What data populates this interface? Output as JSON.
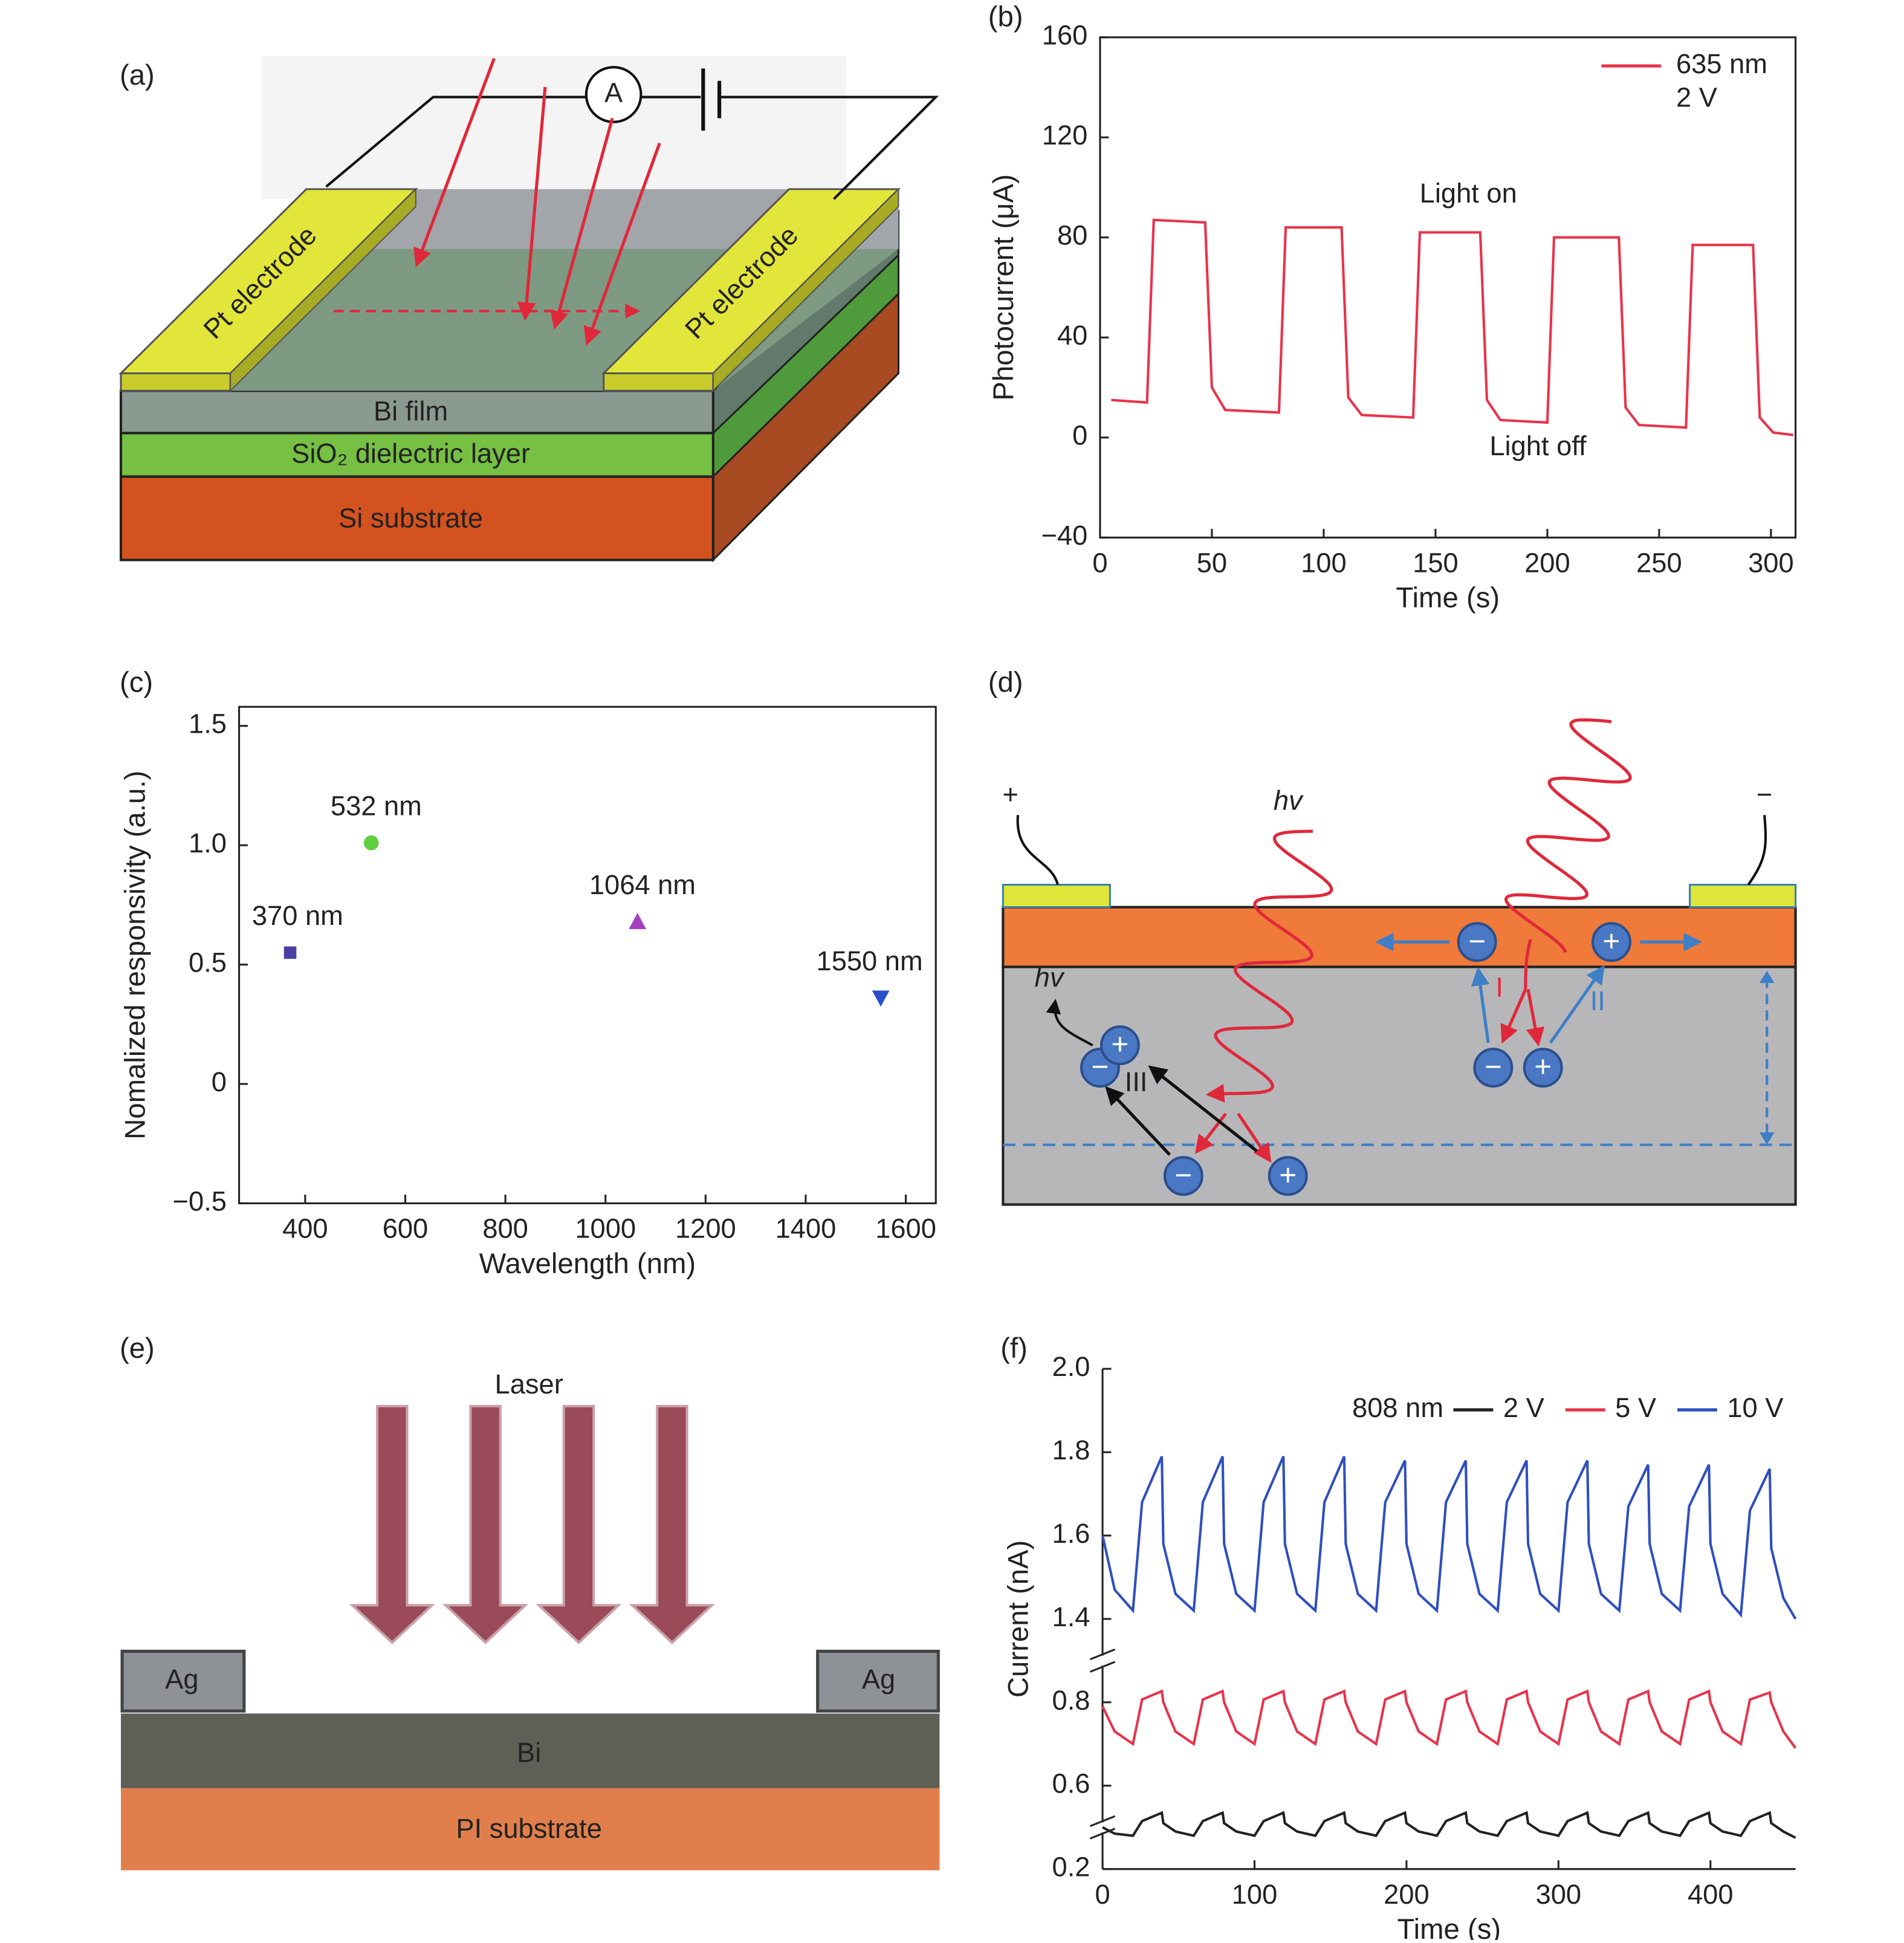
{
  "panel_labels": [
    "(a)",
    "(b)",
    "(c)",
    "(d)",
    "(e)",
    "(f)"
  ],
  "diagram_a": {
    "ammeter": "A",
    "electrodes": [
      "Pt electrode",
      "Pt electrode"
    ],
    "layers": [
      "Bi film",
      "SiO₂ dielectric layer",
      "Si substrate"
    ]
  },
  "diagram_d": {
    "terminals": [
      "+",
      "−"
    ],
    "photon_labels": [
      "hv",
      "hv"
    ],
    "processes": [
      "I",
      "II",
      "III"
    ],
    "charges": [
      "−",
      "+",
      "−",
      "+",
      "−",
      "+",
      "−",
      "+"
    ]
  },
  "diagram_e": {
    "beam_label": "Laser",
    "contacts": [
      "Ag",
      "Ag"
    ],
    "layers": [
      "Bi",
      "PI substrate"
    ]
  },
  "chart_data": [
    {
      "type": "line",
      "x_label": "Time (s)",
      "y_label": "Photocurrent (μA)",
      "x": [
        5,
        21,
        24,
        47,
        50,
        56,
        80,
        83,
        108,
        111,
        117,
        140,
        143,
        170,
        173,
        179,
        200,
        203,
        232,
        235,
        241,
        262,
        265,
        292,
        295,
        301,
        310
      ],
      "series": [
        {
          "name": "635 nm",
          "color": "#e8334a",
          "values": [
            15,
            14,
            87,
            86,
            20,
            11,
            10,
            84,
            84,
            16,
            9,
            8,
            82,
            82,
            15,
            7,
            6,
            80,
            80,
            12,
            5,
            4,
            77,
            77,
            8,
            2,
            1
          ]
        }
      ],
      "legend_note": "2 V",
      "legend": "top-right",
      "annotations": [
        "Light on",
        "Light off"
      ],
      "xlim": [
        0,
        311
      ],
      "xticks": [
        0,
        50,
        100,
        150,
        200,
        250,
        300
      ],
      "ylim": [
        -40,
        160
      ],
      "yticks": [
        {
          "value": -40,
          "label": "−40"
        },
        0,
        40,
        80,
        120,
        160
      ]
    },
    {
      "type": "scatter",
      "x_label": "Wavelength (nm)",
      "y_label": "Nomalized responsivity (a.u.)",
      "x": [
        370,
        532,
        1064,
        1550
      ],
      "values": [
        0.55,
        1.01,
        0.68,
        0.36
      ],
      "colors": [
        "#4b3fa6",
        "#5fcf3f",
        "#a23fbf",
        "#2b4fc8"
      ],
      "markers": [
        "square",
        "circle",
        "triangle",
        "triangle-down"
      ],
      "point_labels": [
        "370 nm",
        "532 nm",
        "1064 nm",
        "1550 nm"
      ],
      "xlim": [
        268,
        1660
      ],
      "xticks": [
        400,
        600,
        800,
        1000,
        1200,
        1400,
        1600
      ],
      "ylim": [
        -0.5,
        1.58
      ],
      "yticks": [
        {
          "value": -0.5,
          "label": "−0.5"
        },
        0,
        0.5,
        {
          "value": 1,
          "label": "1.0"
        },
        1.5
      ]
    },
    {
      "type": "line",
      "x_label": "Time (s)",
      "y_label": "Current (nA)",
      "y_scale": "broken",
      "y_breaks": [
        [
          0.8,
          1.4
        ],
        [
          0.2,
          0.6
        ]
      ],
      "legend_title": "808 nm",
      "legend": "top-right-row",
      "x": [
        0,
        8,
        20,
        26,
        39,
        40,
        48,
        60,
        66,
        79,
        80,
        88,
        100,
        106,
        119,
        120,
        128,
        140,
        146,
        159,
        160,
        168,
        180,
        186,
        199,
        200,
        208,
        220,
        226,
        239,
        240,
        248,
        260,
        266,
        279,
        280,
        288,
        300,
        306,
        319,
        320,
        328,
        340,
        346,
        359,
        360,
        368,
        380,
        386,
        399,
        400,
        408,
        420,
        426,
        439,
        440,
        448,
        456
      ],
      "series": [
        {
          "name": "2 V",
          "color": "#222222",
          "values": [
            0.4,
            0.37,
            0.36,
            0.43,
            0.47,
            0.42,
            0.38,
            0.36,
            0.43,
            0.47,
            0.42,
            0.38,
            0.36,
            0.43,
            0.47,
            0.42,
            0.38,
            0.36,
            0.43,
            0.47,
            0.42,
            0.38,
            0.36,
            0.43,
            0.47,
            0.42,
            0.38,
            0.36,
            0.43,
            0.47,
            0.42,
            0.38,
            0.36,
            0.43,
            0.47,
            0.42,
            0.38,
            0.36,
            0.43,
            0.47,
            0.42,
            0.38,
            0.36,
            0.43,
            0.47,
            0.42,
            0.38,
            0.36,
            0.43,
            0.47,
            0.42,
            0.38,
            0.36,
            0.43,
            0.47,
            0.42,
            0.38,
            0.35
          ]
        },
        {
          "name": "5 V",
          "color": "#e8334a",
          "values": [
            0.79,
            0.73,
            0.7,
            0.82,
            0.88,
            0.8,
            0.73,
            0.7,
            0.82,
            0.88,
            0.8,
            0.73,
            0.7,
            0.82,
            0.88,
            0.8,
            0.73,
            0.7,
            0.82,
            0.88,
            0.8,
            0.73,
            0.7,
            0.82,
            0.88,
            0.8,
            0.73,
            0.7,
            0.82,
            0.88,
            0.8,
            0.73,
            0.7,
            0.82,
            0.88,
            0.8,
            0.73,
            0.7,
            0.82,
            0.88,
            0.8,
            0.73,
            0.7,
            0.82,
            0.88,
            0.8,
            0.73,
            0.7,
            0.82,
            0.88,
            0.8,
            0.73,
            0.7,
            0.82,
            0.87,
            0.8,
            0.73,
            0.69
          ]
        },
        {
          "name": "10 V",
          "color": "#2f4fbf",
          "values": [
            1.6,
            1.47,
            1.42,
            1.68,
            1.79,
            1.58,
            1.46,
            1.42,
            1.68,
            1.79,
            1.58,
            1.46,
            1.42,
            1.68,
            1.79,
            1.58,
            1.46,
            1.42,
            1.68,
            1.79,
            1.58,
            1.46,
            1.42,
            1.68,
            1.78,
            1.58,
            1.46,
            1.42,
            1.68,
            1.78,
            1.58,
            1.46,
            1.42,
            1.68,
            1.78,
            1.58,
            1.46,
            1.42,
            1.68,
            1.78,
            1.58,
            1.46,
            1.42,
            1.67,
            1.77,
            1.58,
            1.46,
            1.42,
            1.67,
            1.77,
            1.58,
            1.46,
            1.41,
            1.66,
            1.76,
            1.57,
            1.45,
            1.4
          ]
        }
      ],
      "xlim": [
        0,
        456
      ],
      "xticks": [
        0,
        100,
        200,
        300,
        400
      ],
      "ylim": [
        0.2,
        2.0
      ],
      "yticks": [
        0.2,
        0.6,
        0.8,
        1.4,
        1.6,
        1.8,
        {
          "value": 2.0,
          "label": "2.0"
        }
      ]
    }
  ]
}
